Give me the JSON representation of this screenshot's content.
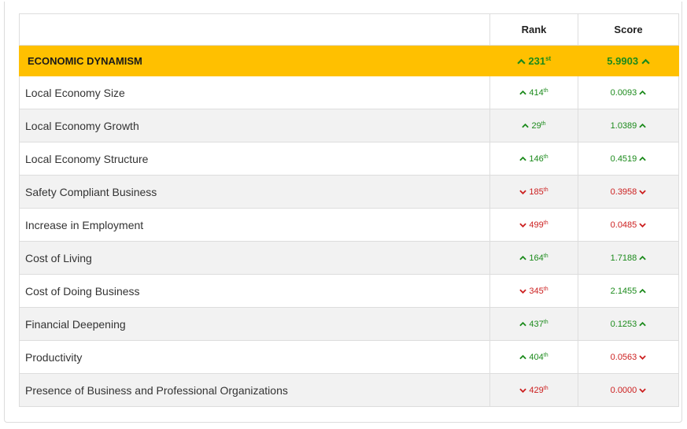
{
  "table": {
    "columns": {
      "rank": "Rank",
      "score": "Score"
    },
    "category": {
      "name": "ECONOMIC DYNAMISM",
      "rank_num": "231",
      "rank_suffix": "st",
      "score": "5.9903",
      "trend": "up"
    },
    "rows": [
      {
        "name": "Local Economy Size",
        "rank_num": "414",
        "rank_suffix": "th",
        "score": "0.0093",
        "trend": "up"
      },
      {
        "name": "Local Economy Growth",
        "rank_num": "29",
        "rank_suffix": "th",
        "score": "1.0389",
        "trend": "up"
      },
      {
        "name": "Local Economy Structure",
        "rank_num": "146",
        "rank_suffix": "th",
        "score": "0.4519",
        "trend": "up"
      },
      {
        "name": "Safety Compliant Business",
        "rank_num": "185",
        "rank_suffix": "th",
        "score": "0.3958",
        "trend": "down"
      },
      {
        "name": "Increase in Employment",
        "rank_num": "499",
        "rank_suffix": "th",
        "score": "0.0485",
        "trend": "down"
      },
      {
        "name": "Cost of Living",
        "rank_num": "164",
        "rank_suffix": "th",
        "score": "1.7188",
        "trend": "up"
      },
      {
        "name": "Cost of Doing Business",
        "rank_num": "345",
        "rank_suffix": "th",
        "score": "2.1455",
        "trend": "down"
      },
      {
        "name": "Financial Deepening",
        "rank_num": "437",
        "rank_suffix": "th",
        "score": "0.1253",
        "trend": "up"
      },
      {
        "name": "Productivity",
        "rank_num": "404",
        "rank_suffix": "th",
        "score": "0.0563",
        "trend": "down"
      },
      {
        "name": "Presence of Business and Professional Organizations",
        "rank_num": "429",
        "rank_suffix": "th",
        "score": "0.0000",
        "trend": "down"
      }
    ]
  },
  "colors": {
    "highlight": "#ffc000",
    "up": "#1b8a1b",
    "down": "#cc1f1f",
    "alt_row": "#f2f2f2"
  },
  "icons": {
    "up": "chevron-up-icon",
    "down": "chevron-down-icon"
  }
}
